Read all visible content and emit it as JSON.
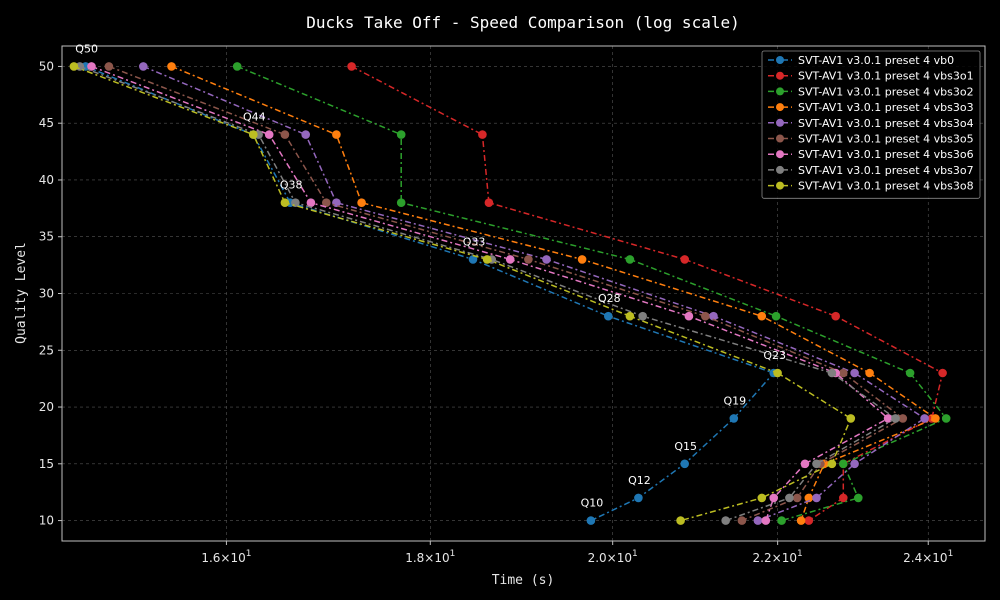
{
  "chart_data": {
    "type": "line",
    "title": "Ducks Take Off - Speed Comparison (log scale)",
    "xlabel": "Time (s)",
    "ylabel": "Quality Level",
    "x_scale": "log",
    "xlim": [
      14.55,
      24.8
    ],
    "ylim": [
      8.2,
      51.8
    ],
    "x_ticks": [
      16,
      18,
      20,
      22,
      24
    ],
    "x_tick_labels": [
      "1.6",
      "1.8",
      "2.0",
      "2.2",
      "2.4"
    ],
    "x_tick_base": "10",
    "x_tick_exp": "1",
    "y_ticks": [
      10,
      15,
      20,
      25,
      30,
      35,
      40,
      45,
      50
    ],
    "grid": true,
    "legend_position": "top-right",
    "series": [
      {
        "name": "SVT-AV1 v3.0.1 preset 4 vb0",
        "color": "#1f77b4",
        "dash": "6,3,2,3",
        "points": [
          [
            14.75,
            50
          ],
          [
            16.25,
            44
          ],
          [
            16.6,
            38
          ],
          [
            18.45,
            33
          ],
          [
            19.95,
            28
          ],
          [
            21.95,
            23
          ],
          [
            21.45,
            19
          ],
          [
            20.85,
            15
          ],
          [
            20.3,
            12
          ],
          [
            19.75,
            10
          ]
        ]
      },
      {
        "name": "SVT-AV1 v3.0.1 preset 4 vbs3o1",
        "color": "#d62728",
        "dash": "6,3,2,3",
        "points": [
          [
            17.2,
            50
          ],
          [
            18.55,
            44
          ],
          [
            18.62,
            38
          ],
          [
            20.85,
            33
          ],
          [
            22.75,
            28
          ],
          [
            24.2,
            23
          ],
          [
            24.05,
            19
          ],
          [
            22.85,
            15
          ],
          [
            22.85,
            12
          ],
          [
            22.4,
            10
          ]
        ]
      },
      {
        "name": "SVT-AV1 v3.0.1 preset 4 vbs3o2",
        "color": "#2ca02c",
        "dash": "6,3,2,3",
        "points": [
          [
            16.1,
            50
          ],
          [
            17.7,
            44
          ],
          [
            17.7,
            38
          ],
          [
            20.2,
            33
          ],
          [
            21.98,
            28
          ],
          [
            23.75,
            23
          ],
          [
            24.25,
            19
          ],
          [
            22.85,
            15
          ],
          [
            23.05,
            12
          ],
          [
            22.05,
            10
          ]
        ]
      },
      {
        "name": "SVT-AV1 v3.0.1 preset 4 vbs3o3",
        "color": "#ff7f0e",
        "dash": "6,3,2,3",
        "points": [
          [
            15.5,
            50
          ],
          [
            17.05,
            44
          ],
          [
            17.3,
            38
          ],
          [
            19.65,
            33
          ],
          [
            21.8,
            28
          ],
          [
            23.2,
            23
          ],
          [
            24.1,
            19
          ],
          [
            22.6,
            15
          ],
          [
            22.4,
            12
          ],
          [
            22.3,
            10
          ]
        ]
      },
      {
        "name": "SVT-AV1 v3.0.1 preset 4 vbs3o4",
        "color": "#9467bd",
        "dash": "6,3,2,3",
        "points": [
          [
            15.25,
            50
          ],
          [
            16.75,
            44
          ],
          [
            17.05,
            38
          ],
          [
            19.25,
            33
          ],
          [
            21.2,
            28
          ],
          [
            23.0,
            23
          ],
          [
            23.95,
            19
          ],
          [
            23.0,
            15
          ],
          [
            22.5,
            12
          ],
          [
            21.75,
            10
          ]
        ]
      },
      {
        "name": "SVT-AV1 v3.0.1 preset 4 vbs3o5",
        "color": "#8c564b",
        "dash": "6,3,2,3",
        "points": [
          [
            14.95,
            50
          ],
          [
            16.55,
            44
          ],
          [
            16.95,
            38
          ],
          [
            19.05,
            33
          ],
          [
            21.1,
            28
          ],
          [
            22.85,
            23
          ],
          [
            23.65,
            19
          ],
          [
            22.55,
            15
          ],
          [
            22.25,
            12
          ],
          [
            21.55,
            10
          ]
        ]
      },
      {
        "name": "SVT-AV1 v3.0.1 preset 4 vbs3o6",
        "color": "#e377c2",
        "dash": "6,3,2,3",
        "points": [
          [
            14.8,
            50
          ],
          [
            16.4,
            44
          ],
          [
            16.8,
            38
          ],
          [
            18.85,
            33
          ],
          [
            20.9,
            28
          ],
          [
            22.75,
            23
          ],
          [
            23.45,
            19
          ],
          [
            22.35,
            15
          ],
          [
            21.95,
            12
          ],
          [
            21.85,
            10
          ]
        ]
      },
      {
        "name": "SVT-AV1 v3.0.1 preset 4 vbs3o7",
        "color": "#7f7f7f",
        "dash": "6,3,2,3",
        "points": [
          [
            14.7,
            50
          ],
          [
            16.3,
            44
          ],
          [
            16.65,
            38
          ],
          [
            18.65,
            33
          ],
          [
            20.35,
            28
          ],
          [
            22.7,
            23
          ],
          [
            23.55,
            19
          ],
          [
            22.5,
            15
          ],
          [
            22.15,
            12
          ],
          [
            21.35,
            10
          ]
        ]
      },
      {
        "name": "SVT-AV1 v3.0.1 preset 4 vbs3o8",
        "color": "#bcbd22",
        "dash": "6,3,2,3",
        "points": [
          [
            14.65,
            50
          ],
          [
            16.25,
            44
          ],
          [
            16.55,
            38
          ],
          [
            18.6,
            33
          ],
          [
            20.2,
            28
          ],
          [
            22.0,
            23
          ],
          [
            22.95,
            19
          ],
          [
            22.7,
            15
          ],
          [
            21.8,
            12
          ],
          [
            20.8,
            10
          ]
        ]
      }
    ],
    "annotations": [
      {
        "text": "Q50",
        "x": 14.75,
        "y": 50
      },
      {
        "text": "Q44",
        "x": 16.25,
        "y": 44
      },
      {
        "text": "Q38",
        "x": 16.6,
        "y": 38
      },
      {
        "text": "Q33",
        "x": 18.45,
        "y": 33
      },
      {
        "text": "Q28",
        "x": 19.95,
        "y": 28
      },
      {
        "text": "Q23",
        "x": 21.95,
        "y": 23
      },
      {
        "text": "Q19",
        "x": 21.45,
        "y": 19
      },
      {
        "text": "Q15",
        "x": 20.85,
        "y": 15
      },
      {
        "text": "Q12",
        "x": 20.3,
        "y": 12
      },
      {
        "text": "Q10",
        "x": 19.75,
        "y": 10
      }
    ]
  }
}
